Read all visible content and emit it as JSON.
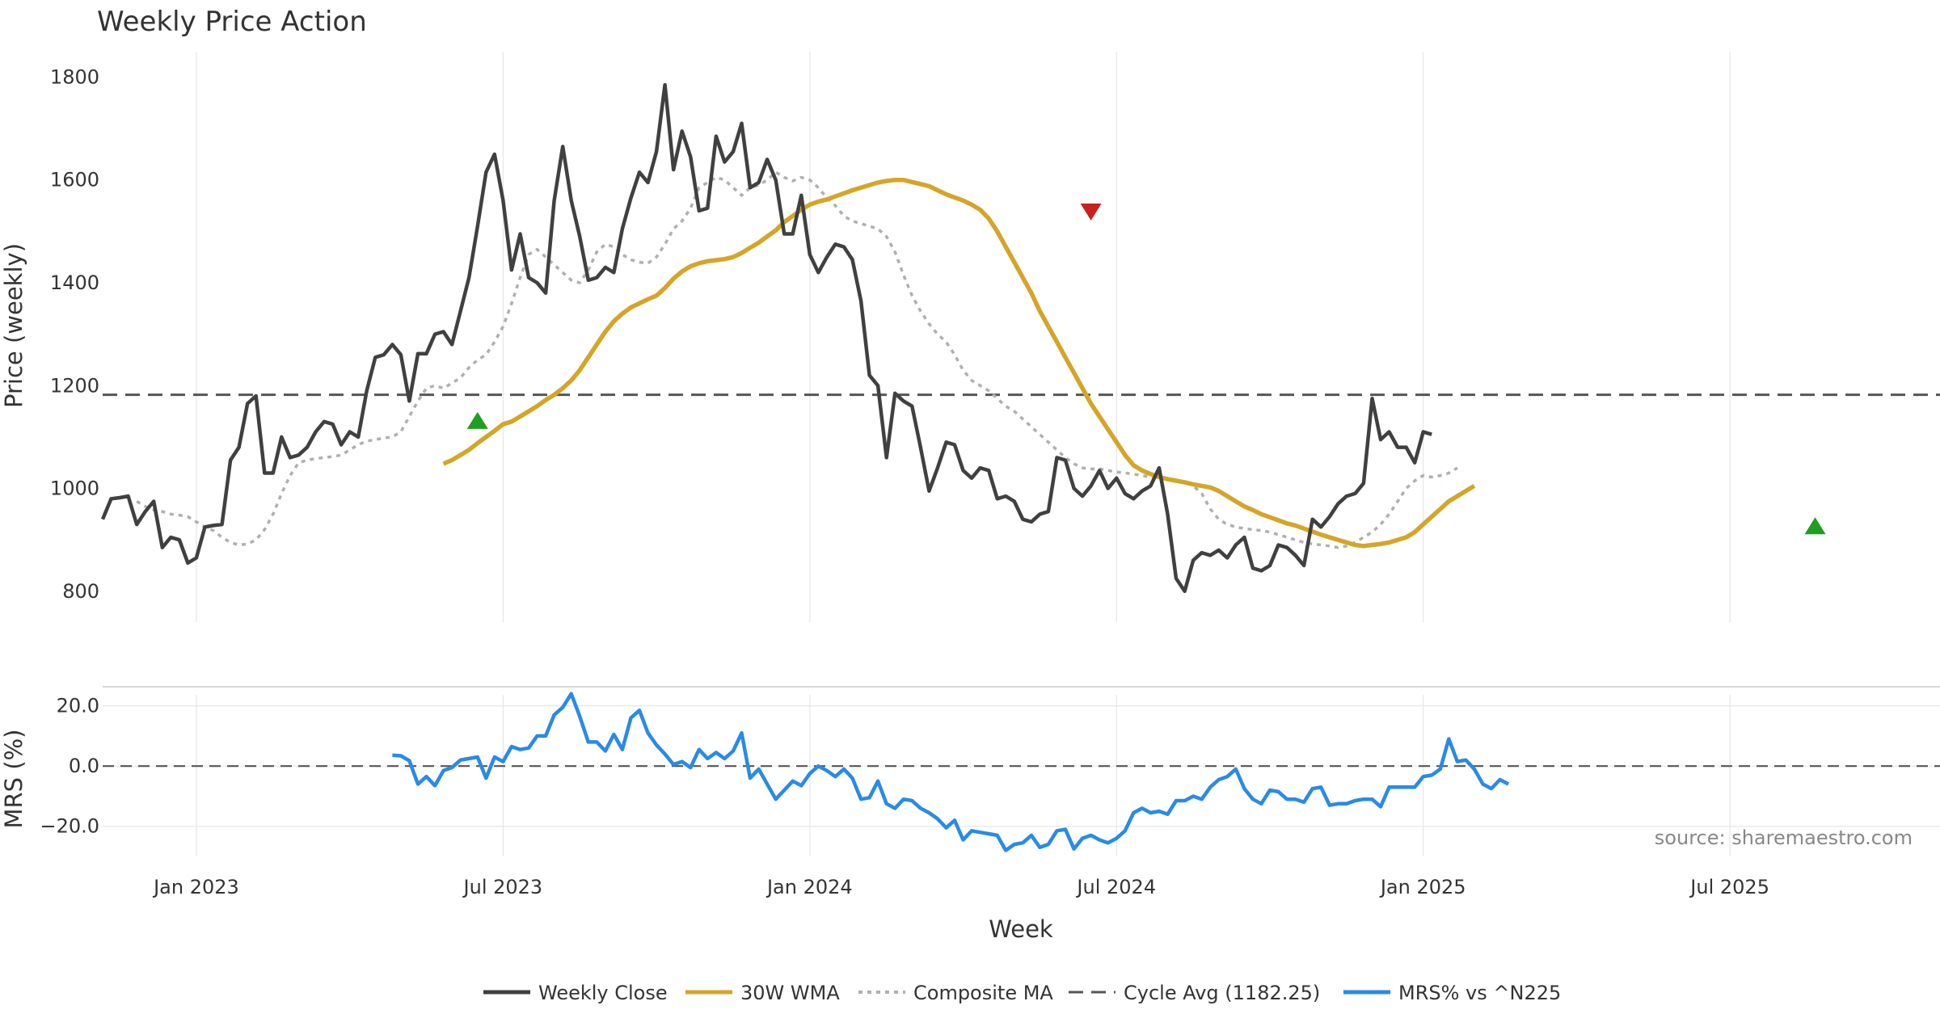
{
  "chart_data": {
    "type": "line",
    "title": "Weekly Price Action",
    "xlabel": "Week",
    "source": "source: sharemaestro.com",
    "x_ticks": [
      "Jan 2023",
      "Jul 2023",
      "Jan 2024",
      "Jul 2024",
      "Jan 2025",
      "Jul 2025"
    ],
    "x_tick_weeks": [
      11,
      47,
      83,
      119,
      155,
      191
    ],
    "week_count": 223,
    "price_panel": {
      "ylabel": "Price (weekly)",
      "ylim": [
        740,
        1840
      ],
      "yticks": [
        800,
        1000,
        1200,
        1400,
        1600,
        1800
      ],
      "y_tick_labels": [
        "800",
        "1000",
        "1200",
        "1400",
        "1600",
        "1800"
      ],
      "cycle_avg": 1182.25
    },
    "mrs_panel": {
      "ylabel": "MRS (%)",
      "ylim": [
        -30,
        25
      ],
      "yticks": [
        20,
        0,
        -20
      ],
      "y_tick_labels": [
        "20.0",
        "0.0",
        "−20.0"
      ]
    },
    "series": {
      "weekly_close": [
        940,
        980,
        982,
        985,
        930,
        955,
        975,
        885,
        905,
        900,
        855,
        865,
        925,
        928,
        930,
        1055,
        1080,
        1165,
        1180,
        1030,
        1030,
        1100,
        1060,
        1065,
        1080,
        1110,
        1130,
        1125,
        1085,
        1110,
        1100,
        1190,
        1255,
        1260,
        1280,
        1260,
        1170,
        1262,
        1262,
        1300,
        1305,
        1280,
        1345,
        1410,
        1510,
        1615,
        1650,
        1560,
        1425,
        1495,
        1410,
        1400,
        1380,
        1560,
        1665,
        1560,
        1490,
        1405,
        1410,
        1430,
        1420,
        1505,
        1565,
        1615,
        1595,
        1655,
        1785,
        1620,
        1695,
        1645,
        1540,
        1545,
        1685,
        1635,
        1655,
        1710,
        1585,
        1595,
        1640,
        1600,
        1495,
        1495,
        1570,
        1455,
        1420,
        1450,
        1475,
        1470,
        1445,
        1365,
        1220,
        1200,
        1060,
        1185,
        1170,
        1160,
        1080,
        995,
        1040,
        1090,
        1085,
        1035,
        1020,
        1040,
        1035,
        980,
        985,
        975,
        940,
        935,
        950,
        955,
        1060,
        1055,
        1000,
        985,
        1005,
        1035,
        1000,
        1020,
        990,
        980,
        995,
        1005,
        1040,
        950,
        825,
        800,
        860,
        875,
        870,
        880,
        865,
        890,
        905,
        845,
        840,
        850,
        890,
        885,
        870,
        850,
        940,
        925,
        945,
        970,
        985,
        990,
        1010,
        1175,
        1095,
        1110,
        1080,
        1080,
        1050,
        1110,
        1105
      ],
      "weekly_close_start_week": 0,
      "wma_30w": [
        1048,
        1055,
        1065,
        1075,
        1088,
        1100,
        1112,
        1125,
        1130,
        1140,
        1150,
        1160,
        1172,
        1182,
        1195,
        1210,
        1230,
        1255,
        1280,
        1305,
        1325,
        1340,
        1352,
        1360,
        1368,
        1375,
        1390,
        1408,
        1422,
        1432,
        1438,
        1442,
        1444,
        1446,
        1450,
        1458,
        1468,
        1478,
        1490,
        1502,
        1518,
        1530,
        1542,
        1552,
        1558,
        1562,
        1568,
        1574,
        1580,
        1585,
        1590,
        1595,
        1598,
        1600,
        1600,
        1596,
        1592,
        1588,
        1580,
        1572,
        1566,
        1560,
        1552,
        1542,
        1525,
        1500,
        1470,
        1440,
        1410,
        1380,
        1345,
        1315,
        1285,
        1255,
        1225,
        1195,
        1165,
        1140,
        1115,
        1090,
        1065,
        1045,
        1035,
        1028,
        1022,
        1018,
        1015,
        1012,
        1008,
        1005,
        1002,
        995,
        985,
        975,
        965,
        958,
        950,
        944,
        938,
        932,
        928,
        922,
        916,
        910,
        905,
        900,
        895,
        890,
        888,
        890,
        892,
        895,
        900,
        905,
        915,
        930,
        945,
        960,
        975,
        985,
        995,
        1005
      ],
      "wma_30w_start_week": 40,
      "composite_ma": [
        975,
        965,
        958,
        955,
        950,
        948,
        945,
        935,
        925,
        918,
        905,
        895,
        890,
        892,
        900,
        920,
        950,
        990,
        1025,
        1050,
        1055,
        1058,
        1060,
        1062,
        1065,
        1075,
        1085,
        1092,
        1095,
        1098,
        1100,
        1110,
        1140,
        1170,
        1195,
        1200,
        1195,
        1205,
        1215,
        1235,
        1250,
        1260,
        1285,
        1315,
        1360,
        1410,
        1455,
        1465,
        1450,
        1435,
        1420,
        1405,
        1400,
        1425,
        1460,
        1475,
        1470,
        1455,
        1445,
        1440,
        1438,
        1450,
        1475,
        1505,
        1520,
        1545,
        1585,
        1595,
        1605,
        1600,
        1585,
        1570,
        1585,
        1590,
        1600,
        1615,
        1605,
        1598,
        1605,
        1600,
        1585,
        1565,
        1550,
        1530,
        1520,
        1515,
        1510,
        1505,
        1490,
        1460,
        1415,
        1375,
        1345,
        1320,
        1300,
        1285,
        1260,
        1230,
        1210,
        1200,
        1190,
        1175,
        1160,
        1150,
        1135,
        1120,
        1105,
        1090,
        1075,
        1060,
        1048,
        1040,
        1038,
        1038,
        1035,
        1032,
        1030,
        1028,
        1025,
        1022,
        1020,
        1018,
        1015,
        1012,
        1005,
        990,
        960,
        940,
        930,
        925,
        922,
        920,
        918,
        915,
        910,
        905,
        900,
        895,
        892,
        890,
        888,
        885,
        888,
        895,
        905,
        915,
        930,
        950,
        975,
        1000,
        1015,
        1025,
        1022,
        1025,
        1030,
        1040
      ],
      "composite_ma_start_week": 4,
      "mrs_pct": [
        3.6,
        3.4,
        1.8,
        -6.0,
        -3.5,
        -6.5,
        -1.5,
        -0.5,
        2.0,
        2.5,
        3.0,
        -4.0,
        3.0,
        1.5,
        6.5,
        5.5,
        6.0,
        10.0,
        10.0,
        17.0,
        19.5,
        24.0,
        16.5,
        8.0,
        8.0,
        5.0,
        10.5,
        5.5,
        16.0,
        18.5,
        11.0,
        7.0,
        4.0,
        0.5,
        1.5,
        -0.5,
        5.5,
        2.5,
        4.5,
        2.5,
        5.0,
        11.0,
        -4.0,
        -1.0,
        -6.0,
        -11.0,
        -8.0,
        -5.0,
        -6.5,
        -2.5,
        0.0,
        -1.5,
        -3.5,
        -1.0,
        -4.0,
        -11.0,
        -10.5,
        -5.0,
        -12.5,
        -14.0,
        -11.0,
        -11.5,
        -14.0,
        -15.5,
        -17.5,
        -20.5,
        -18.0,
        -24.5,
        -21.5,
        -22.0,
        -22.5,
        -23.0,
        -28.0,
        -26.0,
        -25.5,
        -23.0,
        -27.0,
        -26.0,
        -21.5,
        -21.0,
        -27.5,
        -24.0,
        -23.0,
        -24.5,
        -25.5,
        -24.0,
        -21.5,
        -15.5,
        -14.0,
        -15.5,
        -15.0,
        -16.0,
        -11.5,
        -11.5,
        -10.0,
        -11.0,
        -7.0,
        -4.5,
        -3.5,
        -1.0,
        -7.5,
        -11.0,
        -12.5,
        -8.0,
        -8.5,
        -11.0,
        -11.0,
        -12.0,
        -7.5,
        -7.0,
        -13.0,
        -12.5,
        -12.5,
        -11.5,
        -11.0,
        -11.0,
        -13.5,
        -7.0,
        -7.0,
        -7.0,
        -7.0,
        -3.5,
        -3.0,
        -1.0,
        9.0,
        1.5,
        2.0,
        -1.0,
        -6.0,
        -7.5,
        -4.5,
        -6.0
      ],
      "mrs_start_week": 34,
      "buy_signal_weeks": [
        44,
        201
      ],
      "buy_signal_prices": [
        1130,
        925
      ],
      "sell_signal_weeks": [
        116
      ],
      "sell_signal_prices": [
        1540
      ]
    },
    "legend": [
      {
        "label": "Weekly Close",
        "style": "solid",
        "color": "#404040"
      },
      {
        "label": "30W WMA",
        "style": "solid",
        "color": "#d4a528"
      },
      {
        "label": "Composite MA",
        "style": "dotted",
        "color": "#b0b0b0"
      },
      {
        "label": "Cycle Avg (1182.25)",
        "style": "dashed",
        "color": "#555555"
      },
      {
        "label": "MRS% vs ^N225",
        "style": "solid",
        "color": "#2a8ae6"
      }
    ],
    "colors": {
      "close": "#404040",
      "wma": "#d4a528",
      "composite": "#b0b0b0",
      "cycle": "#555555",
      "mrs": "#2a8ae6",
      "buy": "#1f9e1f",
      "sell": "#cc1f1f"
    }
  }
}
